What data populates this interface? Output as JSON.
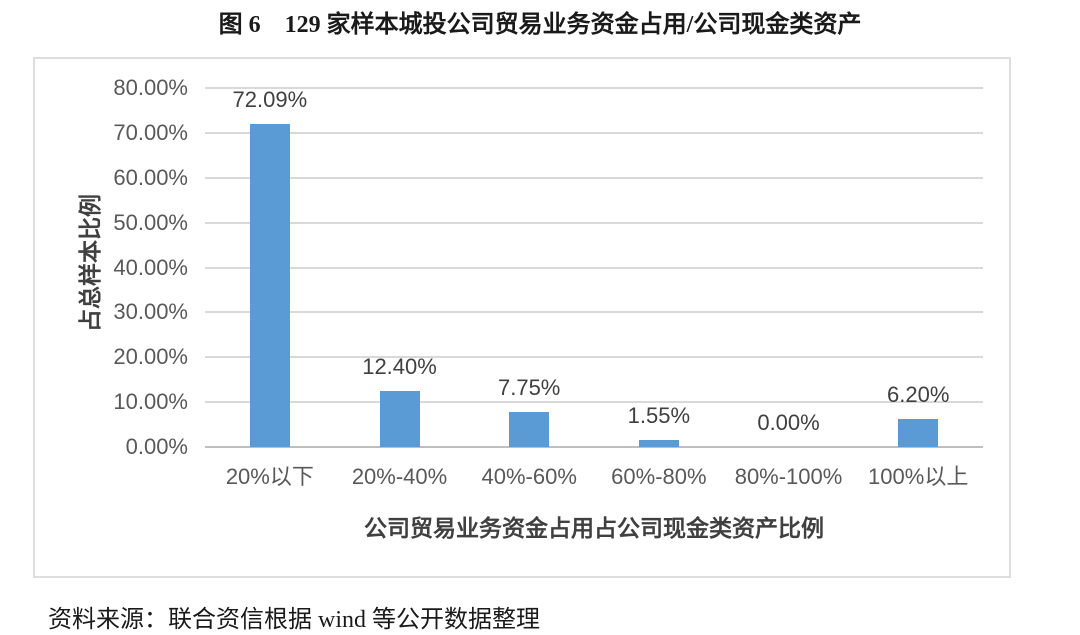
{
  "figure": {
    "title": "图 6　129 家样本城投公司贸易业务资金占用/公司现金类资产",
    "source_note": "资料来源：联合资信根据 wind 等公开数据整理"
  },
  "chart_data": {
    "type": "bar",
    "title": "图 6　129 家样本城投公司贸易业务资金占用/公司现金类资产",
    "categories": [
      "20%以下",
      "20%-40%",
      "40%-60%",
      "60%-80%",
      "80%-100%",
      "100%以上"
    ],
    "values": [
      72.09,
      12.4,
      7.75,
      1.55,
      0.0,
      6.2
    ],
    "data_labels": [
      "72.09%",
      "12.40%",
      "7.75%",
      "1.55%",
      "0.00%",
      "6.20%"
    ],
    "xlabel": "公司贸易业务资金占用占公司现金类资产比例",
    "ylabel": "占总样本比例",
    "ylim": [
      0,
      80
    ],
    "ytick_step": 10,
    "ytick_labels": [
      "80.00%",
      "70.00%",
      "60.00%",
      "50.00%",
      "40.00%",
      "30.00%",
      "20.00%",
      "10.00%",
      "0.00%"
    ],
    "grid": true,
    "legend": "none",
    "bar_color": "#5b9bd5"
  },
  "colors": {
    "bar": "#5b9bd5",
    "gridline": "#d9d9d9",
    "axis_line": "#bfbfbf",
    "tick_text": "#595959",
    "data_label_text": "#404040",
    "chart_border": "#dedede"
  }
}
